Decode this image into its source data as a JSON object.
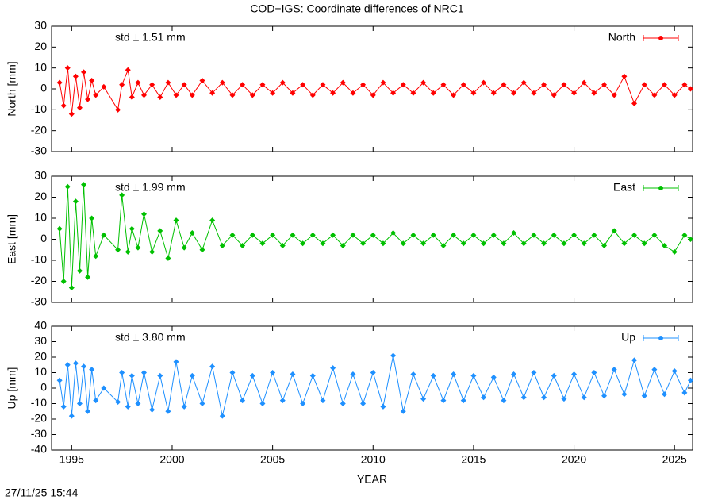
{
  "title": "COD−IGS: Coordinate differences of NRC1",
  "timestamp": "27/11/25 15:44",
  "chart_data": [
    {
      "type": "line",
      "ylabel": "North [mm]",
      "annotation": "std ± 1.51 mm",
      "legend": "top-right",
      "color": "#ff0000",
      "xlim": [
        1994,
        2025.9
      ],
      "xticks": [
        1995,
        2000,
        2005,
        2010,
        2015,
        2020,
        2025
      ],
      "ylim": [
        -30,
        30
      ],
      "yticks": [
        -30,
        -20,
        -10,
        0,
        10,
        20,
        30
      ],
      "x": [
        1994.4,
        1994.6,
        1994.8,
        1995.0,
        1995.2,
        1995.4,
        1995.6,
        1995.8,
        1996.0,
        1996.2,
        1996.6,
        1997.3,
        1997.5,
        1997.8,
        1998.0,
        1998.3,
        1998.6,
        1999.0,
        1999.4,
        1999.8,
        2000.2,
        2000.6,
        2001.0,
        2001.5,
        2002.0,
        2002.5,
        2003.0,
        2003.5,
        2004.0,
        2004.5,
        2005.0,
        2005.5,
        2006.0,
        2006.5,
        2007.0,
        2007.5,
        2008.0,
        2008.5,
        2009.0,
        2009.5,
        2010.0,
        2010.5,
        2011.0,
        2011.5,
        2012.0,
        2012.5,
        2013.0,
        2013.5,
        2014.0,
        2014.5,
        2015.0,
        2015.5,
        2016.0,
        2016.5,
        2017.0,
        2017.5,
        2018.0,
        2018.5,
        2019.0,
        2019.5,
        2020.0,
        2020.5,
        2021.0,
        2021.5,
        2022.0,
        2022.5,
        2023.0,
        2023.5,
        2024.0,
        2024.5,
        2025.0,
        2025.5,
        2025.8
      ],
      "series": [
        {
          "name": "North",
          "color": "#ff0000",
          "values": [
            3,
            -8,
            10,
            -12,
            6,
            -9,
            8,
            -5,
            4,
            -3,
            1,
            -10,
            2,
            9,
            -4,
            3,
            -3,
            2,
            -4,
            3,
            -3,
            2,
            -3,
            4,
            -2,
            3,
            -3,
            2,
            -3,
            2,
            -2,
            3,
            -2,
            2,
            -3,
            2,
            -2,
            3,
            -2,
            2,
            -3,
            3,
            -2,
            2,
            -2,
            3,
            -2,
            2,
            -3,
            2,
            -2,
            3,
            -2,
            2,
            -2,
            3,
            -2,
            2,
            -3,
            2,
            -2,
            3,
            -2,
            2,
            -3,
            6,
            -7,
            2,
            -3,
            2,
            -3,
            2,
            0
          ]
        }
      ]
    },
    {
      "type": "line",
      "ylabel": "East [mm]",
      "annotation": "std ± 1.99 mm",
      "legend": "top-right",
      "color": "#00c000",
      "xlim": [
        1994,
        2025.9
      ],
      "xticks": [
        1995,
        2000,
        2005,
        2010,
        2015,
        2020,
        2025
      ],
      "ylim": [
        -30,
        30
      ],
      "yticks": [
        -30,
        -20,
        -10,
        0,
        10,
        20,
        30
      ],
      "x": [
        1994.4,
        1994.6,
        1994.8,
        1995.0,
        1995.2,
        1995.4,
        1995.6,
        1995.8,
        1996.0,
        1996.2,
        1996.6,
        1997.3,
        1997.5,
        1997.8,
        1998.0,
        1998.3,
        1998.6,
        1999.0,
        1999.4,
        1999.8,
        2000.2,
        2000.6,
        2001.0,
        2001.5,
        2002.0,
        2002.5,
        2003.0,
        2003.5,
        2004.0,
        2004.5,
        2005.0,
        2005.5,
        2006.0,
        2006.5,
        2007.0,
        2007.5,
        2008.0,
        2008.5,
        2009.0,
        2009.5,
        2010.0,
        2010.5,
        2011.0,
        2011.5,
        2012.0,
        2012.5,
        2013.0,
        2013.5,
        2014.0,
        2014.5,
        2015.0,
        2015.5,
        2016.0,
        2016.5,
        2017.0,
        2017.5,
        2018.0,
        2018.5,
        2019.0,
        2019.5,
        2020.0,
        2020.5,
        2021.0,
        2021.5,
        2022.0,
        2022.5,
        2023.0,
        2023.5,
        2024.0,
        2024.5,
        2025.0,
        2025.5,
        2025.8
      ],
      "series": [
        {
          "name": "East",
          "color": "#00c000",
          "values": [
            5,
            -20,
            25,
            -23,
            18,
            -15,
            26,
            -18,
            10,
            -8,
            2,
            -5,
            21,
            -6,
            5,
            -4,
            12,
            -6,
            4,
            -9,
            9,
            -4,
            3,
            -5,
            9,
            -3,
            2,
            -3,
            2,
            -2,
            2,
            -3,
            2,
            -2,
            2,
            -2,
            2,
            -3,
            2,
            -2,
            2,
            -2,
            3,
            -2,
            2,
            -2,
            2,
            -3,
            2,
            -2,
            2,
            -2,
            2,
            -2,
            3,
            -2,
            2,
            -2,
            2,
            -2,
            2,
            -2,
            2,
            -3,
            4,
            -2,
            2,
            -2,
            2,
            -3,
            -6,
            2,
            0
          ]
        }
      ]
    },
    {
      "type": "line",
      "ylabel": "Up [mm]",
      "xlabel": "YEAR",
      "annotation": "std ± 3.80 mm",
      "legend": "top-right",
      "color": "#1e90ff",
      "xlim": [
        1994,
        2025.9
      ],
      "xticks": [
        1995,
        2000,
        2005,
        2010,
        2015,
        2020,
        2025
      ],
      "ylim": [
        -40,
        40
      ],
      "yticks": [
        -40,
        -30,
        -20,
        -10,
        0,
        10,
        20,
        30,
        40
      ],
      "x": [
        1994.4,
        1994.6,
        1994.8,
        1995.0,
        1995.2,
        1995.4,
        1995.6,
        1995.8,
        1996.0,
        1996.2,
        1996.6,
        1997.3,
        1997.5,
        1997.8,
        1998.0,
        1998.3,
        1998.6,
        1999.0,
        1999.4,
        1999.8,
        2000.2,
        2000.6,
        2001.0,
        2001.5,
        2002.0,
        2002.5,
        2003.0,
        2003.5,
        2004.0,
        2004.5,
        2005.0,
        2005.5,
        2006.0,
        2006.5,
        2007.0,
        2007.5,
        2008.0,
        2008.5,
        2009.0,
        2009.5,
        2010.0,
        2010.5,
        2011.0,
        2011.5,
        2012.0,
        2012.5,
        2013.0,
        2013.5,
        2014.0,
        2014.5,
        2015.0,
        2015.5,
        2016.0,
        2016.5,
        2017.0,
        2017.5,
        2018.0,
        2018.5,
        2019.0,
        2019.5,
        2020.0,
        2020.5,
        2021.0,
        2021.5,
        2022.0,
        2022.5,
        2023.0,
        2023.5,
        2024.0,
        2024.5,
        2025.0,
        2025.5,
        2025.8
      ],
      "series": [
        {
          "name": "Up",
          "color": "#1e90ff",
          "values": [
            5,
            -12,
            15,
            -18,
            16,
            -10,
            14,
            -15,
            12,
            -8,
            0,
            -9,
            10,
            -12,
            8,
            -10,
            10,
            -14,
            8,
            -15,
            17,
            -12,
            8,
            -10,
            14,
            -18,
            10,
            -8,
            8,
            -10,
            10,
            -8,
            9,
            -10,
            8,
            -8,
            13,
            -10,
            9,
            -10,
            10,
            -12,
            21,
            -15,
            9,
            -7,
            8,
            -8,
            9,
            -8,
            8,
            -6,
            7,
            -8,
            9,
            -6,
            10,
            -6,
            8,
            -7,
            9,
            -6,
            10,
            -5,
            12,
            -4,
            18,
            -5,
            12,
            -4,
            11,
            -3,
            5
          ]
        }
      ]
    }
  ]
}
